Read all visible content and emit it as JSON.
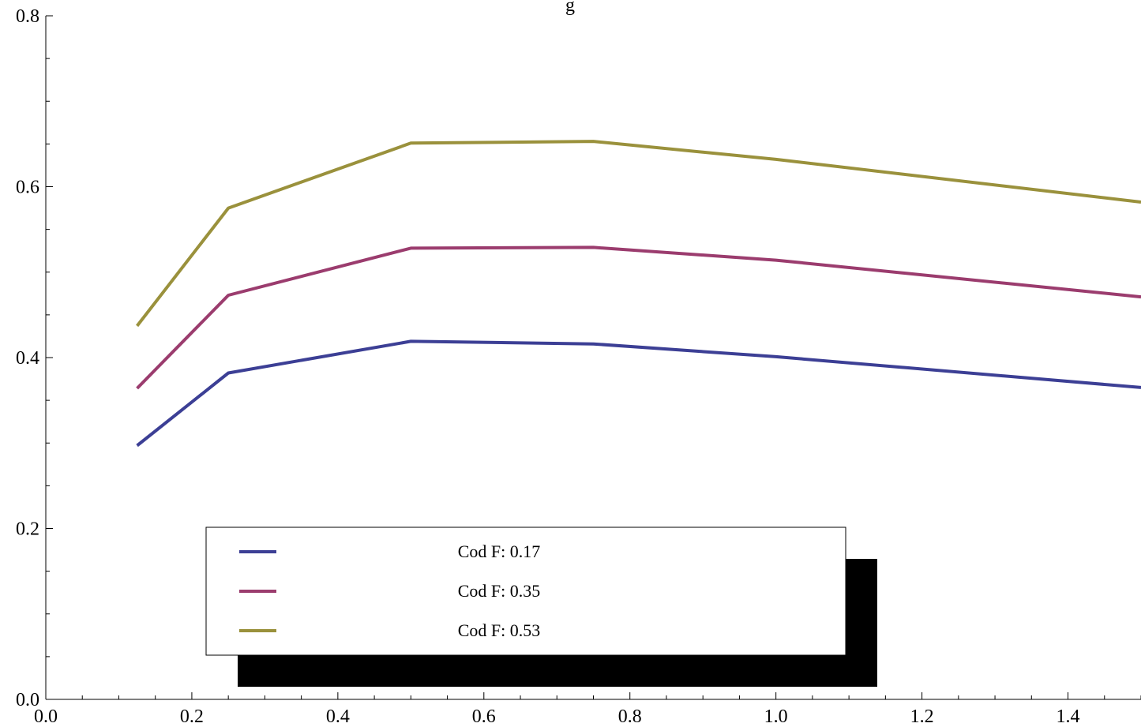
{
  "chart_data": {
    "type": "line",
    "title": "g",
    "xlabel": "",
    "ylabel": "",
    "xlim": [
      0.0,
      1.5
    ],
    "ylim": [
      0.0,
      0.8
    ],
    "x_ticks": [
      "0.0",
      "0.2",
      "0.4",
      "0.6",
      "0.8",
      "1.0",
      "1.2",
      "1.4"
    ],
    "y_ticks": [
      "0.0",
      "0.2",
      "0.4",
      "0.6",
      "0.8"
    ],
    "grid": false,
    "legend_position": "bottom-left",
    "x": [
      0.125,
      0.25,
      0.5,
      0.75,
      1.0,
      1.5
    ],
    "series": [
      {
        "name": "Cod F: 0.17",
        "color": "#3c3f95",
        "values": [
          0.297,
          0.382,
          0.419,
          0.416,
          0.401,
          0.365
        ]
      },
      {
        "name": "Cod F: 0.35",
        "color": "#9b3c6e",
        "values": [
          0.364,
          0.473,
          0.528,
          0.529,
          0.514,
          0.471
        ]
      },
      {
        "name": "Cod F: 0.53",
        "color": "#9a913c",
        "values": [
          0.437,
          0.575,
          0.651,
          0.653,
          0.632,
          0.582
        ]
      }
    ]
  }
}
